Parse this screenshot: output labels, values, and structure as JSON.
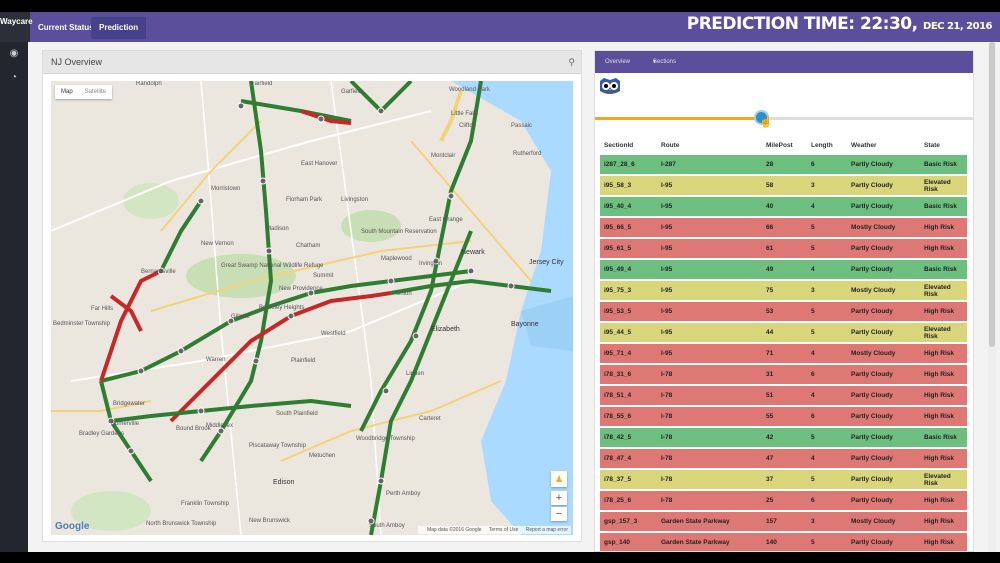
{
  "app": {
    "logo_line1": "Waycare",
    "logo_line2": ""
  },
  "tabs": [
    {
      "label": "Current Status"
    },
    {
      "label": "Prediction"
    }
  ],
  "prediction": {
    "label": "PREDICTION TIME: 22:30,",
    "date": "DEC 21, 2016"
  },
  "sidebar": {
    "icons": [
      "dashboard-icon",
      "pie-chart-icon"
    ]
  },
  "left_panel": {
    "title": "NJ Overview"
  },
  "map": {
    "toggle": {
      "map": "Map",
      "satellite": "Satellite"
    },
    "zoom_in": "+",
    "zoom_out": "−",
    "footer": {
      "data": "Map data ©2016 Google",
      "terms": "Terms of Use",
      "report": "Report a map error"
    },
    "logo": "Google",
    "places": [
      "Garfield",
      "Woodland Park",
      "Little Falls",
      "Clifton",
      "Passaic",
      "Rutherford",
      "East Hanover",
      "Montclair",
      "Morristown",
      "Florham Park",
      "Livingston",
      "East Orange",
      "Madison",
      "South Mountain Reservation",
      "Newark",
      "Jersey City",
      "New Vernon",
      "Chatham",
      "Maplewood",
      "Irvington",
      "Summit",
      "Union",
      "Great Swamp National Wildlife Refuge",
      "Bernardsville",
      "New Providence",
      "Berkeley Heights",
      "Elizabeth",
      "Bayonne",
      "Far Hills",
      "Gillette",
      "Westfield",
      "Warren",
      "Plainfield",
      "Linden",
      "Bridgewater",
      "Somerville",
      "Middlesex",
      "South Plainfield",
      "Woodbridge Township",
      "Carteret",
      "Bradley Gardens",
      "Piscataway Township",
      "Metuchen",
      "Edison",
      "Perth Amboy",
      "Franklin Township",
      "North Brunswick Township",
      "New Brunswick",
      "South Amboy",
      "Bedminster Township",
      "Randolph",
      "Fairfield",
      "Bound Brook"
    ]
  },
  "right_panel": {
    "nav": {
      "overview": "Overview",
      "sections": "Sections"
    },
    "slider_value": 0.44,
    "columns": [
      "SectionId",
      "Route",
      "MilePost",
      "Length",
      "Weather",
      "State"
    ],
    "rows": [
      {
        "id": "i287_28_6",
        "route": "I-287",
        "mile": "28",
        "length": "6",
        "weather": "Partly Cloudy",
        "state": "Basic Risk",
        "risk": "green"
      },
      {
        "id": "i95_58_3",
        "route": "I-95",
        "mile": "58",
        "length": "3",
        "weather": "Partly Cloudy",
        "state": "Elevated Risk",
        "risk": "yellow"
      },
      {
        "id": "i95_40_4",
        "route": "I-95",
        "mile": "40",
        "length": "4",
        "weather": "Partly Cloudy",
        "state": "Basic Risk",
        "risk": "green"
      },
      {
        "id": "i95_66_5",
        "route": "I-95",
        "mile": "66",
        "length": "5",
        "weather": "Mostly Cloudy",
        "state": "High Risk",
        "risk": "red"
      },
      {
        "id": "i95_61_5",
        "route": "I-95",
        "mile": "61",
        "length": "5",
        "weather": "Partly Cloudy",
        "state": "High Risk",
        "risk": "red"
      },
      {
        "id": "i95_49_4",
        "route": "I-95",
        "mile": "49",
        "length": "4",
        "weather": "Partly Cloudy",
        "state": "Basic Risk",
        "risk": "green"
      },
      {
        "id": "i95_75_3",
        "route": "I-95",
        "mile": "75",
        "length": "3",
        "weather": "Mostly Cloudy",
        "state": "Elevated Risk",
        "risk": "yellow"
      },
      {
        "id": "i95_53_5",
        "route": "I-95",
        "mile": "53",
        "length": "5",
        "weather": "Partly Cloudy",
        "state": "High Risk",
        "risk": "red"
      },
      {
        "id": "i95_44_5",
        "route": "I-95",
        "mile": "44",
        "length": "5",
        "weather": "Partly Cloudy",
        "state": "Elevated Risk",
        "risk": "yellow"
      },
      {
        "id": "i95_71_4",
        "route": "I-95",
        "mile": "71",
        "length": "4",
        "weather": "Mostly Cloudy",
        "state": "High Risk",
        "risk": "red"
      },
      {
        "id": "i78_31_6",
        "route": "I-78",
        "mile": "31",
        "length": "6",
        "weather": "Partly Cloudy",
        "state": "High Risk",
        "risk": "red"
      },
      {
        "id": "i78_51_4",
        "route": "I-78",
        "mile": "51",
        "length": "4",
        "weather": "Partly Cloudy",
        "state": "High Risk",
        "risk": "red"
      },
      {
        "id": "i78_55_6",
        "route": "I-78",
        "mile": "55",
        "length": "6",
        "weather": "Partly Cloudy",
        "state": "High Risk",
        "risk": "red"
      },
      {
        "id": "i78_42_5",
        "route": "I-78",
        "mile": "42",
        "length": "5",
        "weather": "Partly Cloudy",
        "state": "Basic Risk",
        "risk": "green"
      },
      {
        "id": "i78_47_4",
        "route": "I-78",
        "mile": "47",
        "length": "4",
        "weather": "Partly Cloudy",
        "state": "High Risk",
        "risk": "red"
      },
      {
        "id": "i78_37_5",
        "route": "I-78",
        "mile": "37",
        "length": "5",
        "weather": "Partly Cloudy",
        "state": "Elevated Risk",
        "risk": "yellow"
      },
      {
        "id": "i78_25_6",
        "route": "I-78",
        "mile": "25",
        "length": "6",
        "weather": "Partly Cloudy",
        "state": "High Risk",
        "risk": "red"
      },
      {
        "id": "gsp_157_3",
        "route": "Garden State Parkway",
        "mile": "157",
        "length": "3",
        "weather": "Mostly Cloudy",
        "state": "High Risk",
        "risk": "red"
      },
      {
        "id": "gsp_140",
        "route": "Garden State Parkway",
        "mile": "140",
        "length": "5",
        "weather": "Partly Cloudy",
        "state": "High Risk",
        "risk": "red"
      }
    ]
  },
  "colors": {
    "header": "#5b4f9b",
    "basic": "#6dbf7f",
    "elevated": "#d8d57a",
    "high": "#de7875"
  }
}
